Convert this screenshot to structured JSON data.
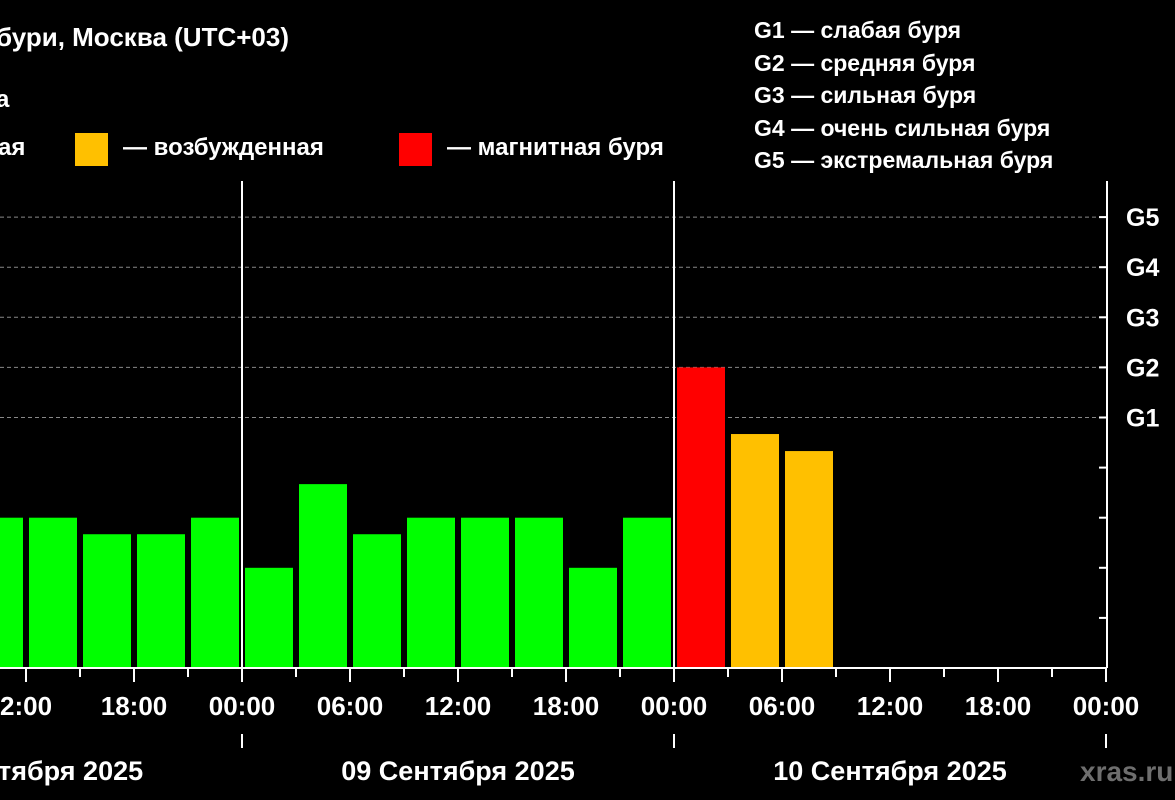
{
  "header": {
    "title": "бури, Москва (UTC+03)",
    "subtitle": "а"
  },
  "legend": {
    "items": [
      {
        "label": "ая",
        "color": ""
      },
      {
        "label": "— возбужденная",
        "color": "#FFC000"
      },
      {
        "label": "— магнитная буря",
        "color": "#FF0000"
      }
    ],
    "g_scale": [
      "G1 — слабая буря",
      "G2 — средняя буря",
      "G3 — сильная буря",
      "G4 — очень сильная буря",
      "G5 — экстремальная буря"
    ]
  },
  "watermark": "xras.ru",
  "chart_data": {
    "type": "bar",
    "colors": {
      "quiet": "#00FF00",
      "active": "#FFC000",
      "storm": "#FF0000"
    },
    "y_range": [
      0,
      9.3
    ],
    "y_right_ticks": [
      {
        "value": 5,
        "label": ""
      },
      {
        "value": 6,
        "label": ""
      },
      {
        "value": 7,
        "label": ""
      },
      {
        "value": 8,
        "label": ""
      },
      {
        "value": 9,
        "label": ""
      },
      {
        "value": 1,
        "label": ""
      },
      {
        "value": 2,
        "label": ""
      },
      {
        "value": 3,
        "label": ""
      },
      {
        "value": 4,
        "label": ""
      }
    ],
    "storm_levels": [
      {
        "kp": 5,
        "label": "G1"
      },
      {
        "kp": 6,
        "label": "G2"
      },
      {
        "kp": 7,
        "label": "G3"
      },
      {
        "kp": 8,
        "label": "G4"
      },
      {
        "kp": 9,
        "label": "G5"
      }
    ],
    "x_ticks_hours": [
      -12,
      -6,
      0,
      6,
      12,
      18,
      24,
      30,
      36,
      42,
      48
    ],
    "x_tick_labels": [
      "2:00",
      "18:00",
      "00:00",
      "06:00",
      "12:00",
      "18:00",
      "00:00",
      "06:00",
      "12:00",
      "18:00",
      "00:00"
    ],
    "day_dividers_hours": [
      0,
      24
    ],
    "days": [
      {
        "label": "тября 2025",
        "center_hours": -12
      },
      {
        "label": "09 Сентября 2025",
        "center_hours": 12
      },
      {
        "label": "10 Сентября 2025",
        "center_hours": 36
      }
    ],
    "bars": [
      {
        "start_hours": -15,
        "kp": 3.0,
        "level": "quiet"
      },
      {
        "start_hours": -12,
        "kp": 3.0,
        "level": "quiet"
      },
      {
        "start_hours": -9,
        "kp": 2.67,
        "level": "quiet"
      },
      {
        "start_hours": -6,
        "kp": 2.67,
        "level": "quiet"
      },
      {
        "start_hours": -3,
        "kp": 3.0,
        "level": "quiet"
      },
      {
        "start_hours": 0,
        "kp": 2.0,
        "level": "quiet"
      },
      {
        "start_hours": 3,
        "kp": 3.67,
        "level": "quiet"
      },
      {
        "start_hours": 6,
        "kp": 2.67,
        "level": "quiet"
      },
      {
        "start_hours": 9,
        "kp": 3.0,
        "level": "quiet"
      },
      {
        "start_hours": 12,
        "kp": 3.0,
        "level": "quiet"
      },
      {
        "start_hours": 15,
        "kp": 3.0,
        "level": "quiet"
      },
      {
        "start_hours": 18,
        "kp": 2.0,
        "level": "quiet"
      },
      {
        "start_hours": 21,
        "kp": 3.0,
        "level": "quiet"
      },
      {
        "start_hours": 24,
        "kp": 6.0,
        "level": "storm"
      },
      {
        "start_hours": 27,
        "kp": 4.67,
        "level": "active"
      },
      {
        "start_hours": 30,
        "kp": 4.33,
        "level": "active"
      }
    ]
  }
}
